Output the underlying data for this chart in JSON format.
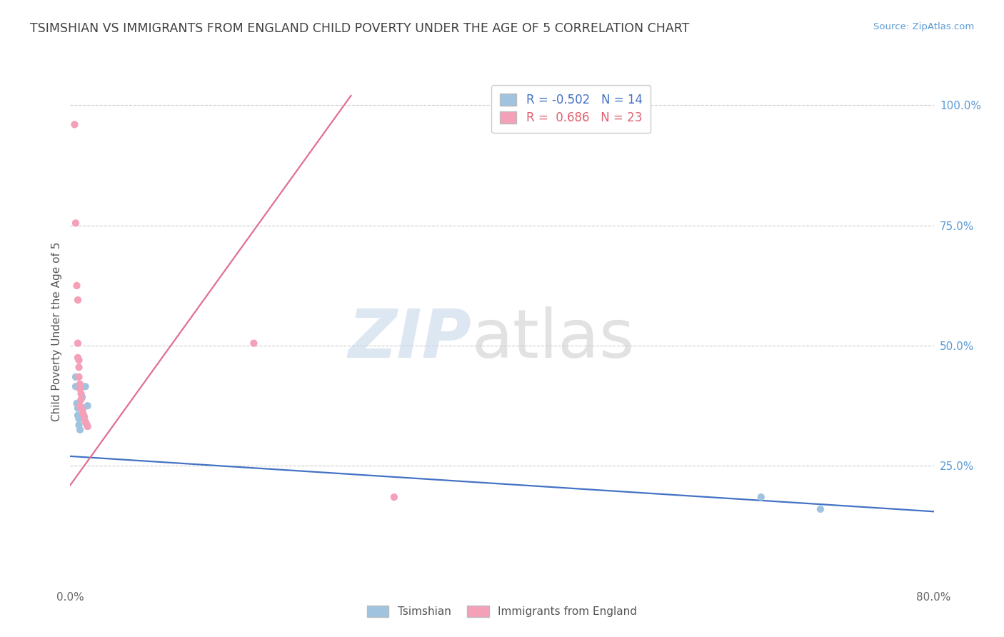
{
  "title": "TSIMSHIAN VS IMMIGRANTS FROM ENGLAND CHILD POVERTY UNDER THE AGE OF 5 CORRELATION CHART",
  "source": "Source: ZipAtlas.com",
  "ylabel": "Child Poverty Under the Age of 5",
  "right_yticks": [
    "100.0%",
    "75.0%",
    "50.0%",
    "25.0%"
  ],
  "right_ytick_vals": [
    1.0,
    0.75,
    0.5,
    0.25
  ],
  "tsimshian_points": [
    [
      0.005,
      0.435
    ],
    [
      0.005,
      0.415
    ],
    [
      0.006,
      0.38
    ],
    [
      0.007,
      0.37
    ],
    [
      0.007,
      0.355
    ],
    [
      0.008,
      0.348
    ],
    [
      0.008,
      0.335
    ],
    [
      0.009,
      0.325
    ],
    [
      0.011,
      0.393
    ],
    [
      0.012,
      0.37
    ],
    [
      0.014,
      0.415
    ],
    [
      0.016,
      0.375
    ],
    [
      0.64,
      0.185
    ],
    [
      0.695,
      0.16
    ]
  ],
  "england_points": [
    [
      0.004,
      0.96
    ],
    [
      0.005,
      0.755
    ],
    [
      0.006,
      0.625
    ],
    [
      0.007,
      0.595
    ],
    [
      0.007,
      0.505
    ],
    [
      0.007,
      0.475
    ],
    [
      0.008,
      0.47
    ],
    [
      0.008,
      0.455
    ],
    [
      0.008,
      0.435
    ],
    [
      0.009,
      0.42
    ],
    [
      0.009,
      0.41
    ],
    [
      0.01,
      0.4
    ],
    [
      0.01,
      0.388
    ],
    [
      0.011,
      0.368
    ],
    [
      0.012,
      0.358
    ],
    [
      0.013,
      0.352
    ],
    [
      0.014,
      0.342
    ],
    [
      0.015,
      0.337
    ],
    [
      0.016,
      0.332
    ],
    [
      0.009,
      0.375
    ],
    [
      0.17,
      0.505
    ],
    [
      0.01,
      0.37
    ],
    [
      0.3,
      0.185
    ]
  ],
  "tsimshian_line_x": [
    0.0,
    0.8
  ],
  "tsimshian_line_y": [
    0.27,
    0.155
  ],
  "england_line_x": [
    0.0,
    0.26
  ],
  "england_line_y": [
    0.21,
    1.02
  ],
  "tsimshian_color": "#a0c4e0",
  "england_color": "#f4a0b8",
  "tsimshian_line_color": "#4472c4",
  "england_line_color": "#e07090",
  "bg_color": "#ffffff",
  "grid_color": "#cccccc",
  "title_color": "#404040",
  "source_color": "#5b9bd5",
  "right_axis_color": "#5b9bd5",
  "xlim": [
    0.0,
    0.8
  ],
  "ylim": [
    0.0,
    1.06
  ],
  "R_tsimshian": "-0.502",
  "N_tsimshian": "14",
  "R_england": "0.686",
  "N_england": "23",
  "legend_bottom": [
    "Tsimshian",
    "Immigrants from England"
  ]
}
